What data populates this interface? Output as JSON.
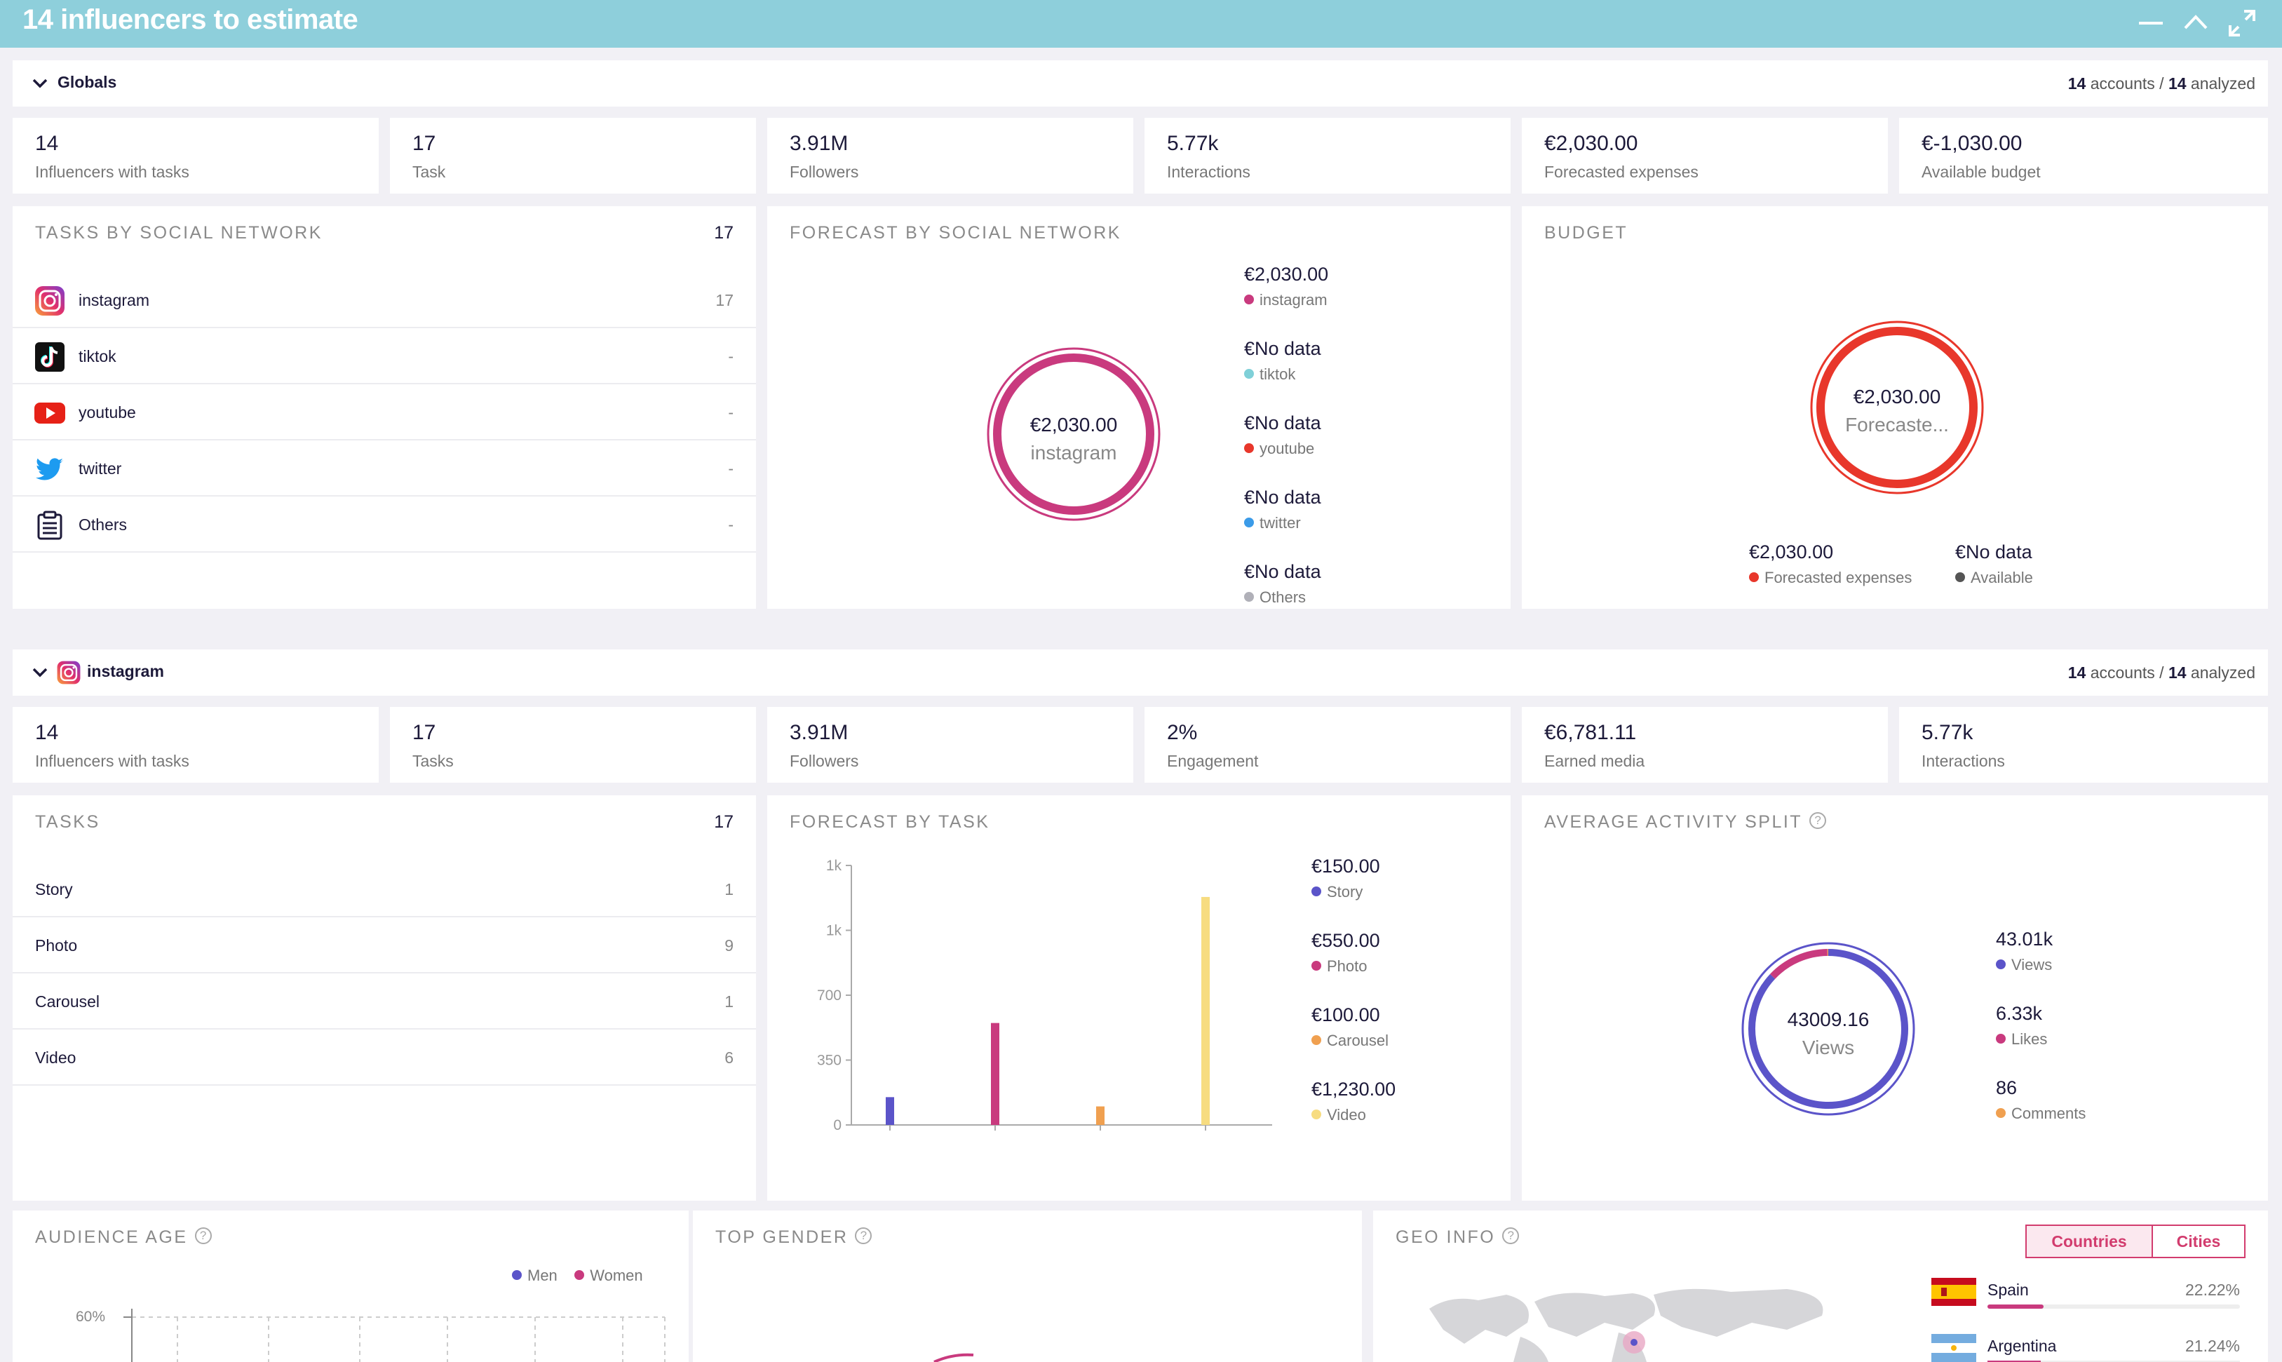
{
  "window": {
    "title": "14 influencers to estimate"
  },
  "globals": {
    "header": {
      "title": "Globals",
      "accounts_num": "14",
      "accounts_word": "accounts",
      "sep": "/",
      "analyzed_num": "14",
      "analyzed_word": "analyzed"
    },
    "kpis": [
      {
        "value": "14",
        "label": "Influencers with tasks"
      },
      {
        "value": "17",
        "label": "Task"
      },
      {
        "value": "3.91M",
        "label": "Followers"
      },
      {
        "value": "5.77k",
        "label": "Interactions"
      },
      {
        "value": "€2,030.00",
        "label": "Forecasted expenses"
      },
      {
        "value": "€-1,030.00",
        "label": "Available budget"
      }
    ],
    "tasks_by_network": {
      "title": "TASKS BY SOCIAL NETWORK",
      "total": "17",
      "rows": [
        {
          "name": "instagram",
          "value": "17",
          "icon": "instagram-icon"
        },
        {
          "name": "tiktok",
          "value": "-",
          "icon": "tiktok-icon"
        },
        {
          "name": "youtube",
          "value": "-",
          "icon": "youtube-icon"
        },
        {
          "name": "twitter",
          "value": "-",
          "icon": "twitter-icon"
        },
        {
          "name": "Others",
          "value": "-",
          "icon": "clipboard-icon"
        }
      ]
    },
    "forecast_by_network": {
      "title": "FORECAST BY SOCIAL NETWORK",
      "center_value": "€2,030.00",
      "center_label": "instagram",
      "legend": [
        {
          "value": "€2,030.00",
          "label": "instagram",
          "color": "#c93a7e"
        },
        {
          "value": "€No data",
          "label": "tiktok",
          "color": "#7fd0d8"
        },
        {
          "value": "€No data",
          "label": "youtube",
          "color": "#e8372b"
        },
        {
          "value": "€No data",
          "label": "twitter",
          "color": "#3b9be8"
        },
        {
          "value": "€No data",
          "label": "Others",
          "color": "#b0b0b8"
        }
      ]
    },
    "budget": {
      "title": "BUDGET",
      "center_value": "€2,030.00",
      "center_label": "Forecaste...",
      "legend": [
        {
          "value": "€2,030.00",
          "label": "Forecasted expenses",
          "color": "#e8372b"
        },
        {
          "value": "€No data",
          "label": "Available",
          "color": "#555555"
        }
      ]
    }
  },
  "instagram": {
    "header": {
      "title": "instagram",
      "accounts_num": "14",
      "accounts_word": "accounts",
      "sep": "/",
      "analyzed_num": "14",
      "analyzed_word": "analyzed"
    },
    "kpis": [
      {
        "value": "14",
        "label": "Influencers with tasks"
      },
      {
        "value": "17",
        "label": "Tasks"
      },
      {
        "value": "3.91M",
        "label": "Followers"
      },
      {
        "value": "2%",
        "label": "Engagement"
      },
      {
        "value": "€6,781.11",
        "label": "Earned media"
      },
      {
        "value": "5.77k",
        "label": "Interactions"
      }
    ],
    "tasks": {
      "title": "TASKS",
      "total": "17",
      "rows": [
        {
          "name": "Story",
          "value": "1"
        },
        {
          "name": "Photo",
          "value": "9"
        },
        {
          "name": "Carousel",
          "value": "1"
        },
        {
          "name": "Video",
          "value": "6"
        }
      ]
    },
    "forecast_by_task": {
      "title": "FORECAST BY TASK",
      "legend": [
        {
          "value": "€150.00",
          "label": "Story",
          "color": "#5b54c9"
        },
        {
          "value": "€550.00",
          "label": "Photo",
          "color": "#c93a7e"
        },
        {
          "value": "€100.00",
          "label": "Carousel",
          "color": "#f0a050"
        },
        {
          "value": "€1,230.00",
          "label": "Video",
          "color": "#f7dc80"
        }
      ]
    },
    "activity_split": {
      "title": "AVERAGE ACTIVITY SPLIT",
      "center_value": "43009.16",
      "center_label": "Views",
      "legend": [
        {
          "value": "43.01k",
          "label": "Views",
          "color": "#5b54c9"
        },
        {
          "value": "6.33k",
          "label": "Likes",
          "color": "#c93a7e"
        },
        {
          "value": "86",
          "label": "Comments",
          "color": "#f0a050"
        }
      ]
    }
  },
  "audience_age": {
    "title": "AUDIENCE AGE",
    "legend": [
      {
        "label": "Men",
        "color": "#5b54c9"
      },
      {
        "label": "Women",
        "color": "#c93a7e"
      }
    ],
    "y_tick_top": "60%"
  },
  "top_gender": {
    "title": "TOP GENDER"
  },
  "geo_info": {
    "title": "GEO INFO",
    "tabs": [
      {
        "label": "Countries",
        "active": true
      },
      {
        "label": "Cities",
        "active": false
      }
    ],
    "countries": [
      {
        "name": "Spain",
        "pct": "22.22%",
        "fraction": 0.2222
      },
      {
        "name": "Argentina",
        "pct": "21.24%",
        "fraction": 0.2124
      }
    ]
  },
  "chart_data": {
    "type": "bar",
    "categories": [
      "Story",
      "Photo",
      "Carousel",
      "Video"
    ],
    "values": [
      150,
      550,
      100,
      1230
    ],
    "colors": [
      "#5b54c9",
      "#c93a7e",
      "#f0a050",
      "#f7dc80"
    ],
    "ylim": [
      0,
      1400
    ],
    "yticks": [
      {
        "value": 0,
        "label": "0"
      },
      {
        "value": 350,
        "label": "350"
      },
      {
        "value": 700,
        "label": "700"
      },
      {
        "value": 1050,
        "label": "1k"
      },
      {
        "value": 1400,
        "label": "1k"
      }
    ]
  }
}
